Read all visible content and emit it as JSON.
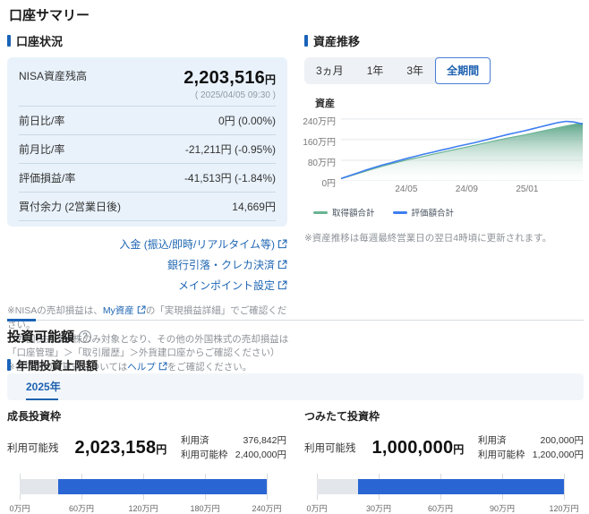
{
  "page": {
    "title": "口座サマリー"
  },
  "account_status": {
    "header": "口座状況",
    "rows": [
      {
        "label": "NISA資産残高",
        "value": "2,203,516",
        "unit": "円",
        "sub": "( 2025/04/05 09:30 )"
      },
      {
        "label": "前日比/率",
        "value": "0円 (0.00%)"
      },
      {
        "label": "前月比/率",
        "value": "-21,211円 (-0.95%)"
      },
      {
        "label": "評価損益/率",
        "value": "-41,513円 (-1.84%)"
      },
      {
        "label": "買付余力 (2営業日後)",
        "value": "14,669円"
      }
    ],
    "links": [
      {
        "label": "入金 (振込/即時/リアルタイム等)"
      },
      {
        "label": "銀行引落・クレカ決済"
      },
      {
        "label": "メインポイント設定"
      }
    ],
    "notes": {
      "n1_pre": "※NISAの売却損益は、",
      "n1_link": "My資産",
      "n1_post": "の「実現損益詳細」でご確認ください。",
      "n2": "（外国株式は米株のみ対象となり、その他の外国株式の売却損益は「口座管理」＞「取引履歴」＞外貨建口座からご確認ください）",
      "n3_pre": "※各項目の計算式については",
      "n3_link": "ヘルプ",
      "n3_post": "をご確認ください。"
    }
  },
  "asset_trend": {
    "header": "資産推移",
    "tabs": [
      {
        "label": "3ヵ月",
        "selected": false
      },
      {
        "label": "1年",
        "selected": false
      },
      {
        "label": "3年",
        "selected": false
      },
      {
        "label": "全期間",
        "selected": true
      }
    ],
    "axis_title": "資産",
    "note": "※資産推移は毎週最終営業日の翌日4時頃に更新されます。"
  },
  "chart_data": {
    "type": "area",
    "title": "資産推移",
    "ylabel": "資産",
    "unit": "万円",
    "ylim": [
      0,
      250
    ],
    "grid": true,
    "legend_position": "bottom",
    "y_ticks": [
      {
        "label": "240万円",
        "value": 240
      },
      {
        "label": "160万円",
        "value": 160
      },
      {
        "label": "80万円",
        "value": 80
      },
      {
        "label": "0円",
        "value": 0
      }
    ],
    "x_ticks": [
      {
        "label": "24/05",
        "pos": 0.27
      },
      {
        "label": "24/09",
        "pos": 0.52
      },
      {
        "label": "25/01",
        "pos": 0.77
      }
    ],
    "x_range": [
      "24/01",
      "25/04"
    ],
    "series": [
      {
        "name": "取得額合計",
        "kind": "area",
        "color": "#69b392",
        "values": [
          8,
          18,
          28,
          38,
          48,
          57,
          66,
          74,
          82,
          89,
          96,
          103,
          110,
          117,
          124,
          131,
          138,
          145,
          152,
          159,
          166,
          172,
          178,
          185,
          192,
          199,
          206,
          213,
          219,
          224
        ]
      },
      {
        "name": "評価額合計",
        "kind": "line",
        "color": "#3e7ef0",
        "values": [
          9,
          20,
          31,
          42,
          52,
          62,
          70,
          79,
          88,
          96,
          104,
          111,
          119,
          126,
          134,
          141,
          148,
          156,
          164,
          172,
          180,
          187,
          194,
          202,
          210,
          218,
          226,
          231,
          228,
          220
        ]
      }
    ]
  },
  "investable": {
    "title": "投資可能額",
    "help_glyph": "?",
    "annual_header": "年間投資上限額",
    "year_tab": "2025年",
    "quotas": [
      {
        "name": "成長投資枠",
        "available_label": "利用可能残",
        "available_value": "2,023,158",
        "unit": "円",
        "used_label": "利用済",
        "used_value": "376,842円",
        "limit_label": "利用可能枠",
        "limit_value": "2,400,000円",
        "used_amount": 376842,
        "limit_amount": 2400000,
        "scale": [
          "0万円",
          "60万円",
          "120万円",
          "180万円",
          "240万円"
        ]
      },
      {
        "name": "つみたて投資枠",
        "available_label": "利用可能残",
        "available_value": "1,000,000",
        "unit": "円",
        "used_label": "利用済",
        "used_value": "200,000円",
        "limit_label": "利用可能枠",
        "limit_value": "1,200,000円",
        "used_amount": 200000,
        "limit_amount": 1200000,
        "scale": [
          "0万円",
          "30万円",
          "60万円",
          "90万円",
          "120万円"
        ]
      }
    ]
  },
  "colors": {
    "accent_blue": "#1a63b8",
    "link_blue": "#1e66b3",
    "bar_blue": "#2a65d4",
    "bar_gray": "#e3e6ea",
    "panel_blue": "#e9f2fb",
    "line_blue": "#3e7ef0",
    "area_green": "#69b392"
  }
}
